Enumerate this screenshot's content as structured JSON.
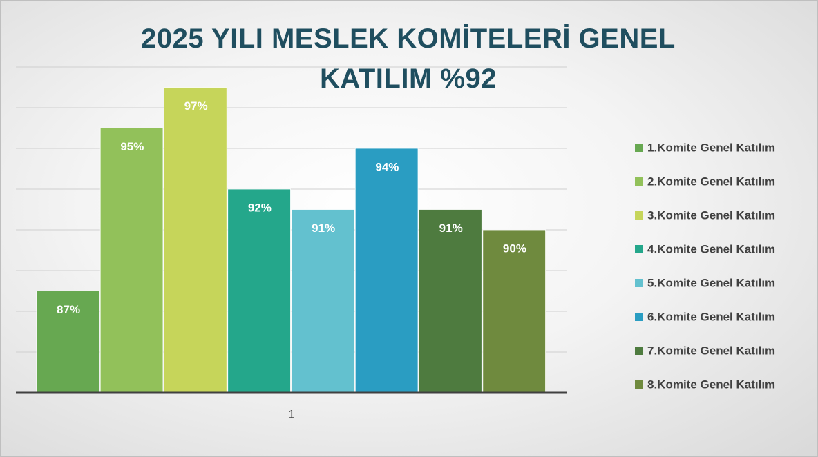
{
  "chart_data": {
    "type": "bar",
    "title": "2025 YILI MESLEK KOMİTELERİ GENEL KATILIM %92",
    "categories": [
      "1"
    ],
    "series": [
      {
        "name": "1.Komite Genel Katılım",
        "color": "#67a851",
        "values": [
          87
        ],
        "value_labels": [
          "87%"
        ]
      },
      {
        "name": "2.Komite Genel Katılım",
        "color": "#92c15a",
        "values": [
          95
        ],
        "value_labels": [
          "95%"
        ]
      },
      {
        "name": "3.Komite Genel Katılım",
        "color": "#c6d55a",
        "values": [
          97
        ],
        "value_labels": [
          "97%"
        ]
      },
      {
        "name": "4.Komite Genel Katılım",
        "color": "#24a78b",
        "values": [
          92
        ],
        "value_labels": [
          "92%"
        ]
      },
      {
        "name": "5.Komite Genel Katılım",
        "color": "#63c1cf",
        "values": [
          91
        ],
        "value_labels": [
          "91%"
        ]
      },
      {
        "name": "6.Komite Genel Katılım",
        "color": "#2a9dc2",
        "values": [
          94
        ],
        "value_labels": [
          "94%"
        ]
      },
      {
        "name": "7.Komite Genel Katılım",
        "color": "#4e7b3f",
        "values": [
          91
        ],
        "value_labels": [
          "91%"
        ]
      },
      {
        "name": "8.Komite Genel Katılım",
        "color": "#6f8a3e",
        "values": [
          90
        ],
        "value_labels": [
          "90%"
        ]
      }
    ],
    "ylim": [
      82,
      98
    ],
    "yticks": [
      82,
      84,
      86,
      88,
      90,
      92,
      94,
      96,
      98
    ],
    "grid": true,
    "legend": "right"
  }
}
